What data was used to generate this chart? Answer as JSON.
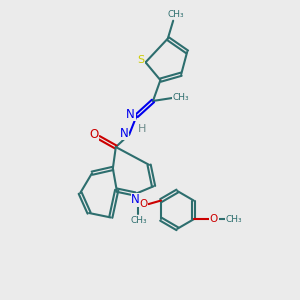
{
  "bg_color": "#ebebeb",
  "bond_color": "#2d6e6e",
  "n_color": "#0000ee",
  "o_color": "#cc0000",
  "s_color": "#cccc00",
  "h_color": "#6a8a8a",
  "linewidth": 1.5,
  "figsize": [
    3.0,
    3.0
  ],
  "dpi": 100,
  "xlim": [
    0,
    10
  ],
  "ylim": [
    0,
    10
  ]
}
